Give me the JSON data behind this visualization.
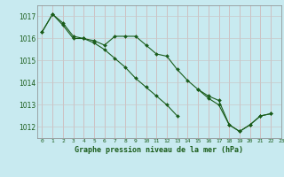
{
  "title": "Graphe pression niveau de la mer (hPa)",
  "background_color": "#c8eaf0",
  "grid_color": "#c0d8d8",
  "line_color": "#1a5c1a",
  "marker_color": "#1a5c1a",
  "xlim": [
    -0.5,
    23
  ],
  "ylim": [
    1011.5,
    1017.5
  ],
  "yticks": [
    1012,
    1013,
    1014,
    1015,
    1016,
    1017
  ],
  "xticks": [
    0,
    1,
    2,
    3,
    4,
    5,
    6,
    7,
    8,
    9,
    10,
    11,
    12,
    13,
    14,
    15,
    16,
    17,
    18,
    19,
    20,
    21,
    22,
    23
  ],
  "series1": {
    "x": [
      0,
      1,
      2,
      3,
      4,
      5,
      6,
      7,
      8,
      9,
      10,
      11,
      12,
      13,
      14,
      15,
      16,
      17,
      18,
      19,
      20,
      21,
      22
    ],
    "y": [
      1016.3,
      1017.1,
      1016.7,
      1016.1,
      1016.0,
      1015.9,
      1015.7,
      1016.1,
      1016.1,
      1016.1,
      1015.7,
      1015.3,
      1015.2,
      1014.6,
      1014.1,
      1013.7,
      1013.3,
      1013.0,
      1012.1,
      1011.8,
      1012.1,
      1012.5,
      1012.6
    ]
  },
  "series2": {
    "x": [
      0,
      1,
      2,
      3,
      4,
      5,
      6,
      7,
      8,
      9,
      10,
      11,
      12,
      13
    ],
    "y": [
      1016.3,
      1017.1,
      1016.6,
      1016.0,
      1016.0,
      1015.8,
      1015.5,
      1015.1,
      1014.7,
      1014.2,
      1013.8,
      1013.4,
      1013.0,
      1012.5
    ]
  },
  "series3": {
    "x": [
      15,
      16,
      17,
      18,
      19,
      20,
      21,
      22
    ],
    "y": [
      1013.7,
      1013.4,
      1013.2,
      1012.1,
      1011.8,
      1012.1,
      1012.5,
      1012.6
    ]
  }
}
